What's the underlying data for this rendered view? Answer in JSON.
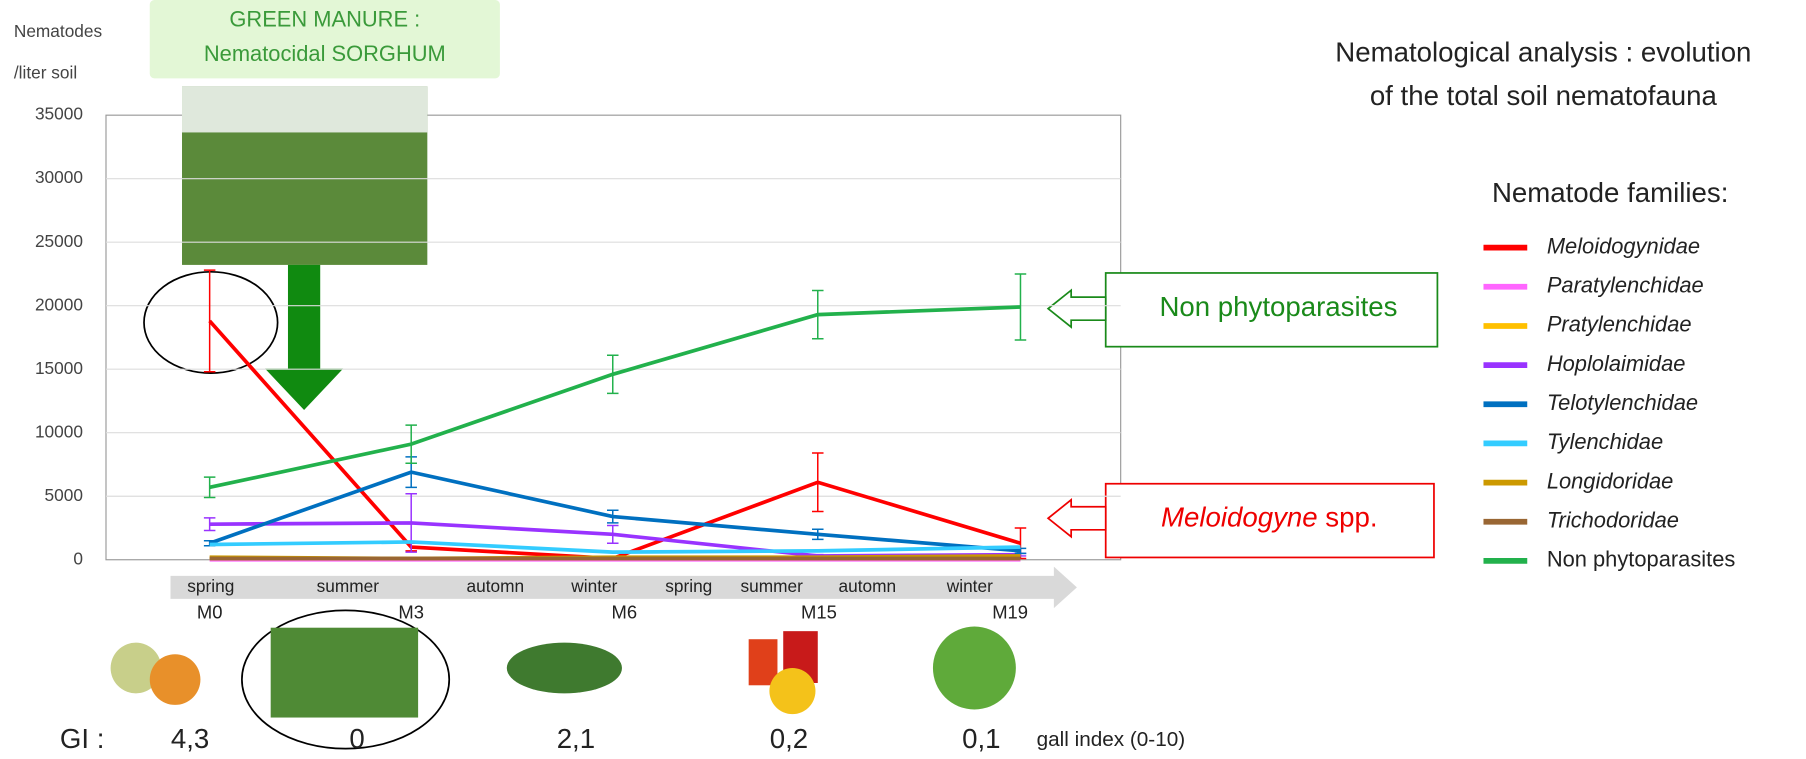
{
  "chart_data": {
    "type": "line",
    "ylabel": [
      "Nematodes",
      "/liter soil"
    ],
    "title": [
      "Nematological analysis : evolution",
      "of the total soil nematofauna"
    ],
    "legend_title": "Nematode families:",
    "banner": [
      "GREEN MANURE :",
      "Nematocidal SORGHUM"
    ],
    "categories": [
      "M0",
      "M3",
      "M6",
      "M15",
      "M19"
    ],
    "seasons": [
      "spring",
      "summer",
      "automn",
      "winter",
      "spring",
      "summer",
      "automn",
      "winter"
    ],
    "ylim": [
      0,
      35000
    ],
    "yticks": [
      0,
      5000,
      10000,
      15000,
      20000,
      25000,
      30000,
      35000
    ],
    "grid": true,
    "series": [
      {
        "name": "Meloidogynidae",
        "color": "#ff0000",
        "values": [
          18800,
          1000,
          100,
          6100,
          1300
        ],
        "errors": [
          4000,
          300,
          100,
          2300,
          1200
        ]
      },
      {
        "name": "Paratylenchidae",
        "color": "#ff66ff",
        "values": [
          0,
          0,
          0,
          0,
          0
        ]
      },
      {
        "name": "Pratylenchidae",
        "color": "#ffc000",
        "values": [
          100,
          100,
          100,
          100,
          100
        ]
      },
      {
        "name": "Hoplolaimidae",
        "color": "#9933ff",
        "values": [
          2800,
          2900,
          2000,
          300,
          400
        ],
        "errors": [
          500,
          2300,
          700,
          100,
          100
        ]
      },
      {
        "name": "Telotylenchidae",
        "color": "#0070c0",
        "values": [
          1300,
          6900,
          3400,
          2000,
          700
        ],
        "errors": [
          200,
          1200,
          500,
          400,
          200
        ]
      },
      {
        "name": "Tylenchidae",
        "color": "#33ccff",
        "values": [
          1200,
          1400,
          600,
          700,
          1000
        ]
      },
      {
        "name": "Longidoridae",
        "color": "#cc9900",
        "values": [
          200,
          100,
          200,
          200,
          300
        ]
      },
      {
        "name": "Trichodoridae",
        "color": "#996633",
        "values": [
          100,
          100,
          100,
          100,
          100
        ]
      },
      {
        "name": "Non phytoparasites",
        "color": "#22b14c",
        "values": [
          5700,
          9100,
          14600,
          19300,
          19900
        ],
        "errors": [
          800,
          1500,
          1500,
          1900,
          2600
        ]
      }
    ],
    "callouts": {
      "non_phyto": "Non phytoparasites",
      "melo_italic": "Meloidogyne",
      "melo_rest": " spp."
    },
    "gi": {
      "label": "GI :",
      "values": [
        "4,3",
        "0",
        "2,1",
        "0,2",
        "0,1"
      ],
      "note": "gall index (0-10)"
    }
  }
}
